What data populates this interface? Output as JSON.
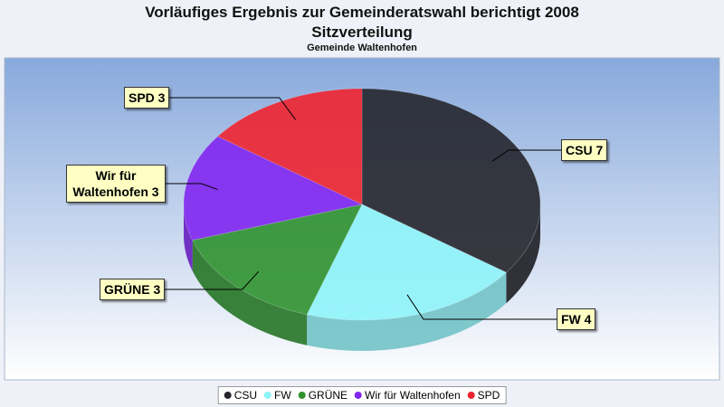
{
  "chart_data": {
    "type": "pie3d",
    "title": "Vorläufiges Ergebnis zur Gemeinderatswahl berichtigt 2008",
    "subtitle": "Sitzverteilung",
    "note": "Gemeinde Waltenhofen",
    "categories": [
      "CSU",
      "FW",
      "GRÜNE",
      "Wir für Waltenhofen",
      "SPD"
    ],
    "values": [
      7,
      4,
      3,
      3,
      3
    ],
    "value_labels": [
      "CSU 7",
      "FW 4",
      "GRÜNE 3",
      "Wir für Waltenhofen 3",
      "SPD 3"
    ],
    "colors": [
      "#25262c",
      "#8ef4f8",
      "#2f922f",
      "#8126f0",
      "#ee2430"
    ],
    "legend": "bottom"
  }
}
